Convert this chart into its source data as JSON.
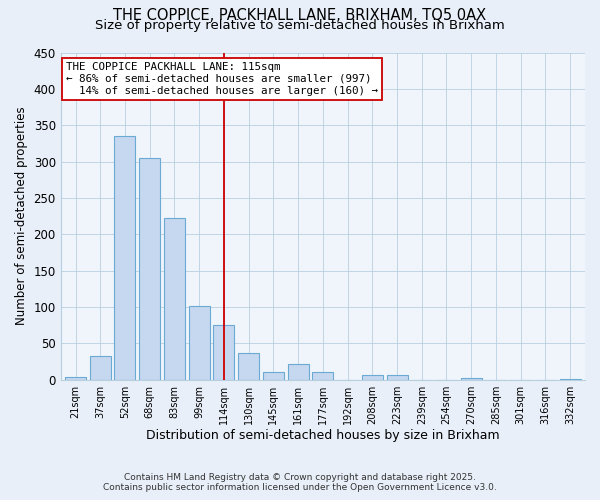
{
  "title1": "THE COPPICE, PACKHALL LANE, BRIXHAM, TQ5 0AX",
  "title2": "Size of property relative to semi-detached houses in Brixham",
  "xlabel": "Distribution of semi-detached houses by size in Brixham",
  "ylabel": "Number of semi-detached properties",
  "categories": [
    "21sqm",
    "37sqm",
    "52sqm",
    "68sqm",
    "83sqm",
    "99sqm",
    "114sqm",
    "130sqm",
    "145sqm",
    "161sqm",
    "177sqm",
    "192sqm",
    "208sqm",
    "223sqm",
    "239sqm",
    "254sqm",
    "270sqm",
    "285sqm",
    "301sqm",
    "316sqm",
    "332sqm"
  ],
  "values": [
    4,
    33,
    335,
    305,
    223,
    101,
    75,
    37,
    10,
    21,
    10,
    0,
    6,
    7,
    0,
    0,
    2,
    0,
    0,
    0,
    1
  ],
  "bar_color": "#c5d8ef",
  "bar_edge_color": "#6aaad4",
  "vline_index": 6,
  "vline_color": "#cc0000",
  "property_label": "THE COPPICE PACKHALL LANE: 115sqm",
  "pct_smaller": "← 86% of semi-detached houses are smaller (997)",
  "pct_larger": "14% of semi-detached houses are larger (160) →",
  "ylim": [
    0,
    450
  ],
  "yticks": [
    0,
    50,
    100,
    150,
    200,
    250,
    300,
    350,
    400,
    450
  ],
  "footnote1": "Contains HM Land Registry data © Crown copyright and database right 2025.",
  "footnote2": "Contains public sector information licensed under the Open Government Licence v3.0.",
  "bg_color": "#e8eff8",
  "plot_bg_color": "#f0f5fb",
  "title_fontsize": 10.5,
  "subtitle_fontsize": 9.5,
  "annotation_box_color": "#ffffff",
  "annotation_box_edge": "#cc0000",
  "annotation_fontsize": 7.8
}
